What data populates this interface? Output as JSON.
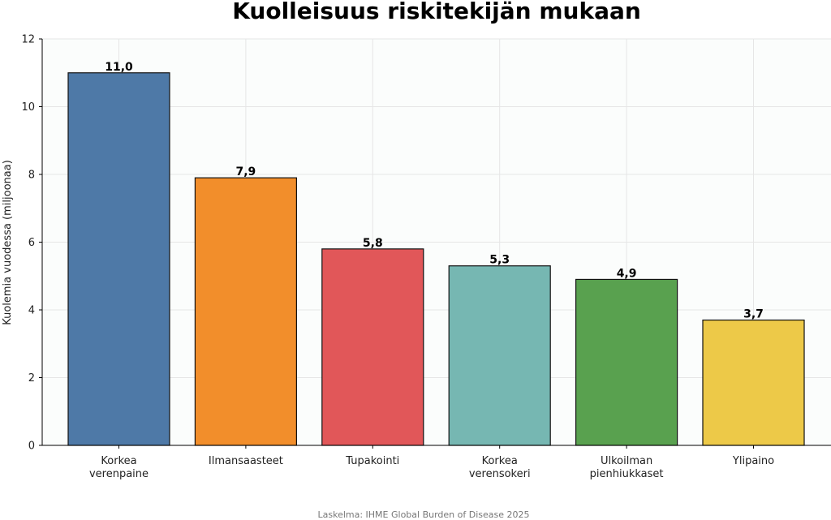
{
  "chart_data": {
    "type": "bar",
    "title": "Kuolleisuus riskitekijän mukaan",
    "ylabel": "Kuolemia vuodessa (miljoonaa)",
    "xlabel": "",
    "ylim": [
      0,
      12
    ],
    "yticks": [
      "0",
      "2",
      "4",
      "6",
      "8",
      "10",
      "12"
    ],
    "categories": [
      [
        "Korkea",
        "verenpaine"
      ],
      [
        "Ilmansaasteet"
      ],
      [
        "Tupakointi"
      ],
      [
        "Korkea",
        "verensokeri"
      ],
      [
        "Ulkoilman",
        "pienhiukkaset"
      ],
      [
        "Ylipaino"
      ]
    ],
    "values": [
      11.0,
      7.9,
      5.8,
      5.3,
      4.9,
      3.7
    ],
    "value_labels": [
      "11,0",
      "7,9",
      "5,8",
      "5,3",
      "4,9",
      "3,7"
    ],
    "colors": [
      "#4e79a7",
      "#f28e2b",
      "#e15759",
      "#76b7b2",
      "#59a14f",
      "#edc948"
    ],
    "grid": true,
    "source": "Laskelma: IHME Global Burden of Disease 2025"
  }
}
